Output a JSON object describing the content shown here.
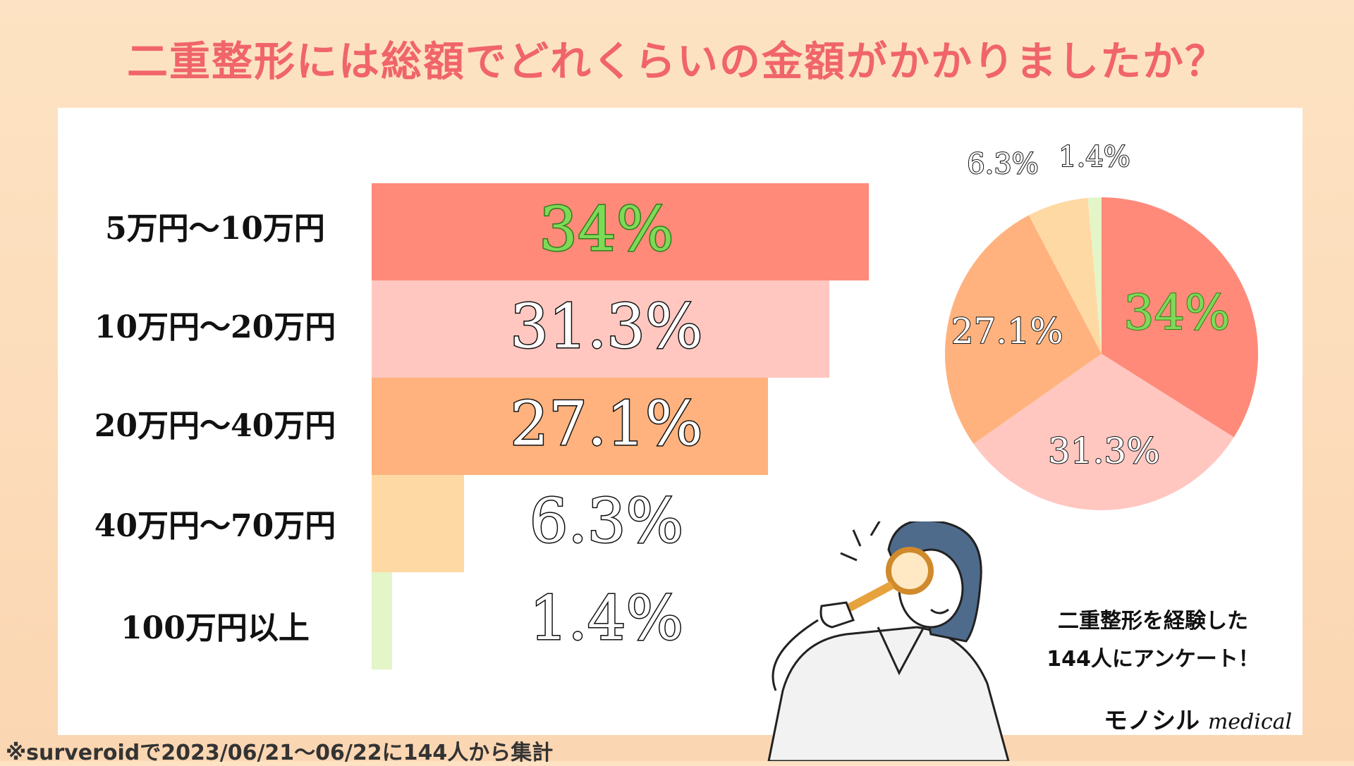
{
  "title": "二重整形には総額でどれくらいの金額がかかりましたか？",
  "chart_data": {
    "type": "bar",
    "categories": [
      "5万円〜10万円",
      "10万円〜20万円",
      "20万円〜40万円",
      "40万円〜70万円",
      "100万円以上"
    ],
    "values": [
      34,
      31.3,
      27.1,
      6.3,
      1.4
    ],
    "value_labels": [
      "34%",
      "31.3%",
      "27.1%",
      "6.3%",
      "1.4%"
    ],
    "colors": [
      "#ff8a7a",
      "#ffc7c0",
      "#ffb27d",
      "#ffd9a3",
      "#e4f5c8"
    ],
    "highlight_color": "#7ed957",
    "pie": {
      "type": "pie",
      "values": [
        34,
        31.3,
        27.1,
        6.3,
        1.4
      ],
      "labels": [
        "34%",
        "31.3%",
        "27.1%",
        "6.3%",
        "1.4%"
      ],
      "colors": [
        "#ff8a7a",
        "#ffc7c0",
        "#ffb27d",
        "#ffd9a3",
        "#e4f5c8"
      ]
    }
  },
  "note_line1": "二重整形を経験した",
  "note_line2": "144人にアンケート！",
  "brand_main": "モノシル",
  "brand_sub": "medical",
  "footnote": "※surveroidで2023/06/21〜06/22に144人から集計"
}
